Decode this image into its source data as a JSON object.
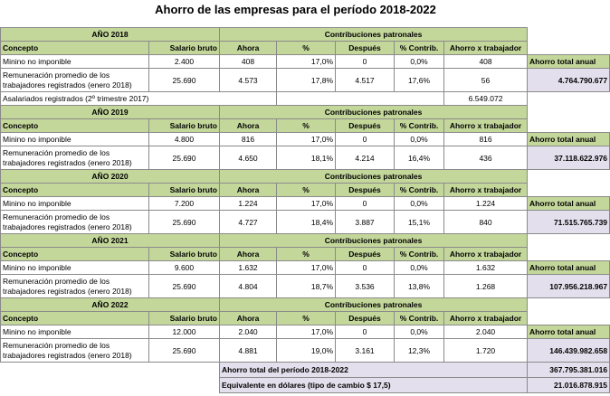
{
  "title": "Ahorro de las empresas para el período 2018-2022",
  "contrib_header": "Contribuciones patronales",
  "columns": [
    "Concepto",
    "Salario bruto",
    "Ahora",
    "%",
    "Después",
    "% Contrib.",
    "Ahorro x trabajador"
  ],
  "label_minimo": "Minino no imponible",
  "label_remun": "Remuneración promedio de los trabajadores registrados (enero 2018)",
  "savings_label": "Ahorro total anual",
  "blocks": [
    {
      "year_label": "AÑO 2018",
      "min_row": [
        "2.400",
        "408",
        "17,0%",
        "0",
        "0,0%",
        "408"
      ],
      "rem_row": [
        "25.690",
        "4.573",
        "17,8%",
        "4.517",
        "17,6%",
        "56"
      ],
      "annual_savings": "4.764.790.677",
      "assalariados_label": "Asalariados registrados (2º trimestre 2017)",
      "assalariados_value": "6.549.072"
    },
    {
      "year_label": "AÑO 2019",
      "min_row": [
        "4.800",
        "816",
        "17,0%",
        "0",
        "0,0%",
        "816"
      ],
      "rem_row": [
        "25.690",
        "4.650",
        "18,1%",
        "4.214",
        "16,4%",
        "436"
      ],
      "annual_savings": "37.118.622.976"
    },
    {
      "year_label": "AÑO 2020",
      "min_row": [
        "7.200",
        "1.224",
        "17,0%",
        "0",
        "0,0%",
        "1.224"
      ],
      "rem_row": [
        "25.690",
        "4.727",
        "18,4%",
        "3.887",
        "15,1%",
        "840"
      ],
      "annual_savings": "71.515.765.739"
    },
    {
      "year_label": "AÑO 2021",
      "min_row": [
        "9.600",
        "1.632",
        "17,0%",
        "0",
        "0,0%",
        "1.632"
      ],
      "rem_row": [
        "25.690",
        "4.804",
        "18,7%",
        "3.536",
        "13,8%",
        "1.268"
      ],
      "annual_savings": "107.956.218.967"
    },
    {
      "year_label": "AÑO 2022",
      "min_row": [
        "12.000",
        "2.040",
        "17,0%",
        "0",
        "0,0%",
        "2.040"
      ],
      "rem_row": [
        "25.690",
        "4.881",
        "19,0%",
        "3.161",
        "12,3%",
        "1.720"
      ],
      "annual_savings": "146.439.982.658"
    }
  ],
  "totals": [
    {
      "label": "Ahorro total del período 2018-2022",
      "value": "367.795.381.016"
    },
    {
      "label": "Equivalente en dólares (tipo de cambio $ 17,5)",
      "value": "21.016.878.915"
    }
  ],
  "colors": {
    "header_green": "#c4d79b",
    "savings_lavender": "#e4dfec"
  }
}
